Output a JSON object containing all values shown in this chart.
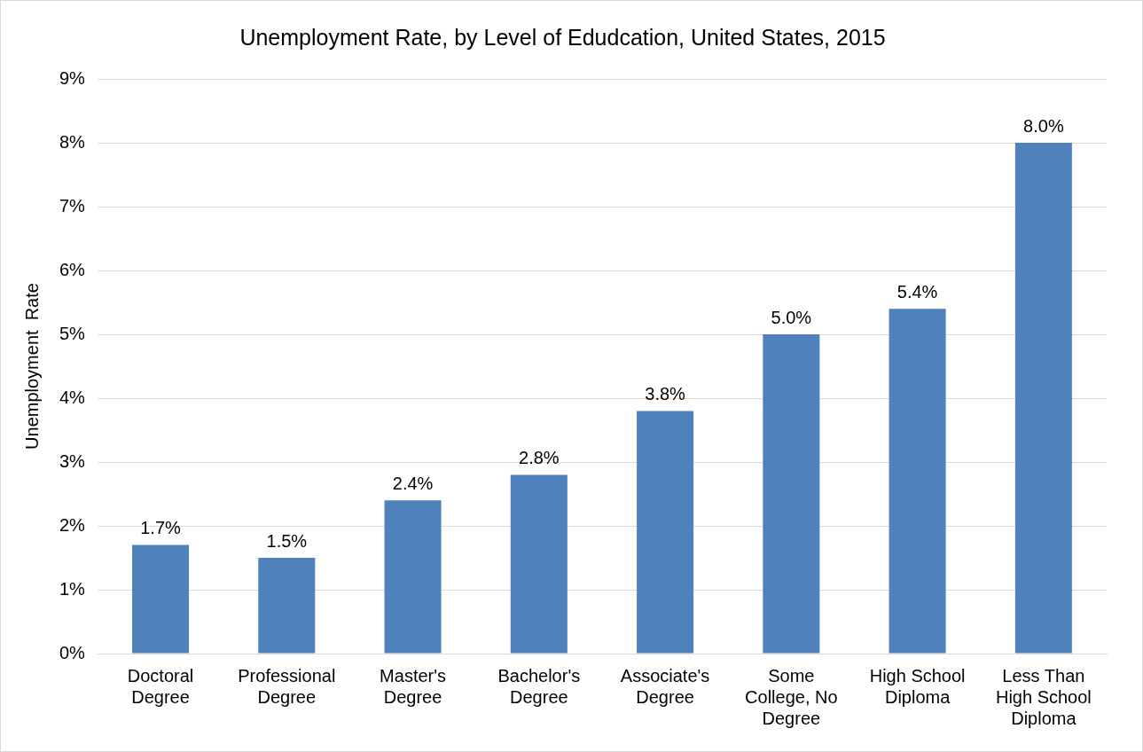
{
  "chart_data": {
    "type": "bar",
    "title": "Unemployment Rate, by Level of Edudcation, United States, 2015",
    "ylabel": "Unemployment  Rate",
    "categories": [
      "Doctoral Degree",
      "Professional Degree",
      "Master's Degree",
      "Bachelor's Degree",
      "Associate's Degree",
      "Some College, No Degree",
      "High School Diploma",
      "Less Than High School Diploma"
    ],
    "values": [
      1.7,
      1.5,
      2.4,
      2.8,
      3.8,
      5.0,
      5.4,
      8.0
    ],
    "value_labels": [
      "1.7%",
      "1.5%",
      "2.4%",
      "2.8%",
      "3.8%",
      "5.0%",
      "5.4%",
      "8.0%"
    ],
    "color": "#4f81bd",
    "ylim": [
      0,
      9
    ],
    "yticks": [
      {
        "value": 0,
        "label": "0%"
      },
      {
        "value": 1,
        "label": "1%"
      },
      {
        "value": 2,
        "label": "2%"
      },
      {
        "value": 3,
        "label": "3%"
      },
      {
        "value": 4,
        "label": "4%"
      },
      {
        "value": 5,
        "label": "5%"
      },
      {
        "value": 6,
        "label": "6%"
      },
      {
        "value": 7,
        "label": "7%"
      },
      {
        "value": 8,
        "label": "8%"
      },
      {
        "value": 9,
        "label": "9%"
      }
    ],
    "grid": "y",
    "legend": false
  }
}
